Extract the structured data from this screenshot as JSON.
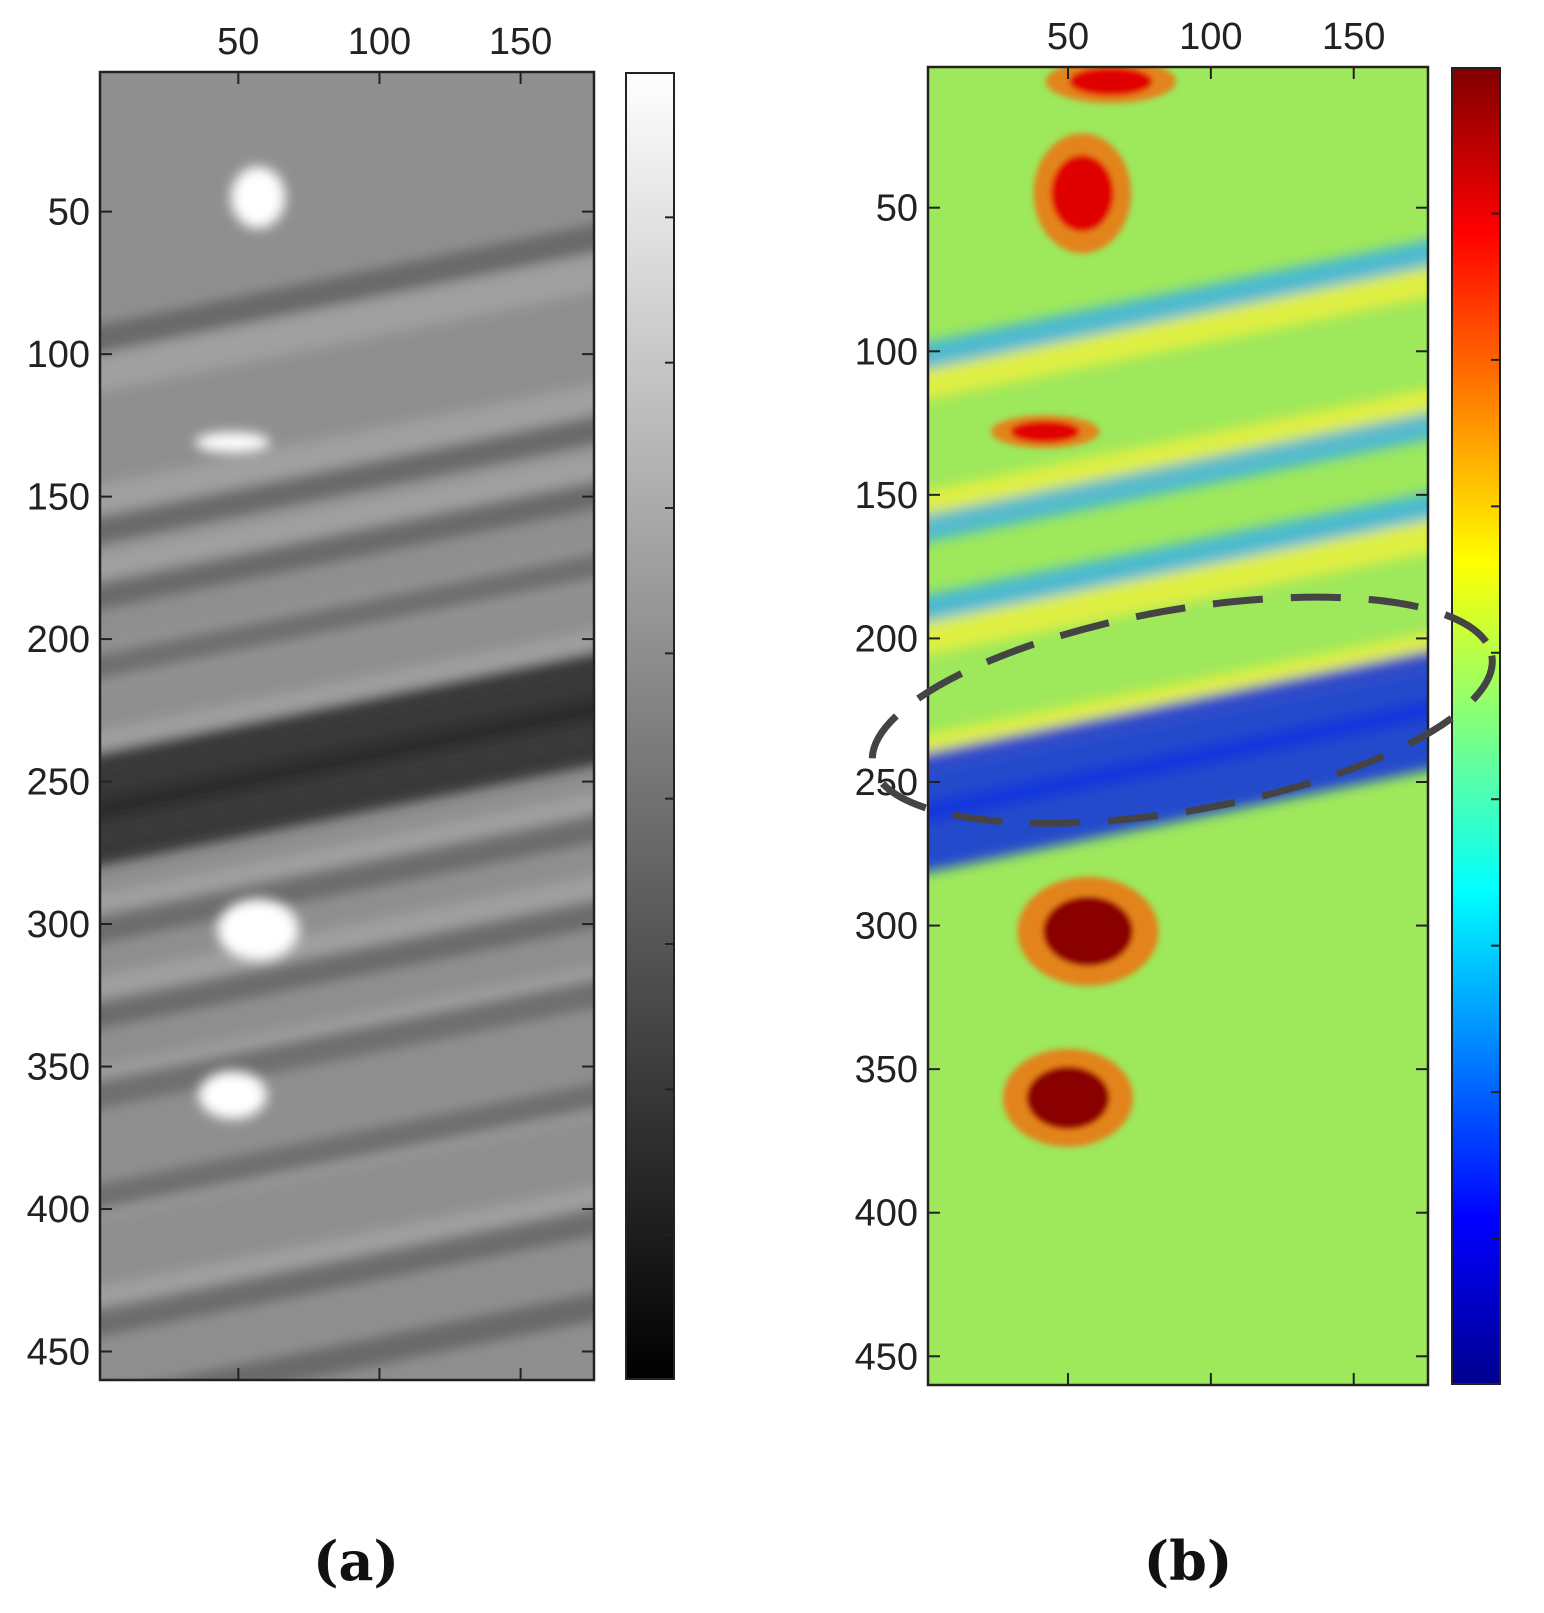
{
  "chart_data": [
    {
      "panel": "(a)",
      "type": "heatmap",
      "colormap": "gray",
      "x_ticks": [
        50,
        100,
        150
      ],
      "y_ticks": [
        50,
        100,
        150,
        200,
        250,
        300,
        350,
        400,
        450
      ],
      "xlim": [
        1,
        176
      ],
      "ylim": [
        1,
        460
      ],
      "x_axis_position": "top",
      "y_axis_direction": "reversed",
      "colorbar": "right",
      "features": {
        "dark_bands_y": [
          75,
          142,
          165,
          190,
          232,
          248,
          282,
          312,
          340,
          376,
          420,
          450
        ],
        "bright_spots": [
          {
            "x": 57,
            "y": 45,
            "w": 16,
            "h": 18
          },
          {
            "x": 48,
            "y": 131,
            "w": 22,
            "h": 6
          },
          {
            "x": 57,
            "y": 302,
            "w": 24,
            "h": 18
          },
          {
            "x": 48,
            "y": 360,
            "w": 20,
            "h": 14
          }
        ]
      }
    },
    {
      "panel": "(b)",
      "type": "heatmap",
      "colormap": "jet",
      "x_ticks": [
        50,
        100,
        150
      ],
      "y_ticks": [
        50,
        100,
        150,
        200,
        250,
        300,
        350,
        400,
        450
      ],
      "xlim": [
        1,
        176
      ],
      "ylim": [
        1,
        460
      ],
      "x_axis_position": "top",
      "y_axis_direction": "reversed",
      "colorbar": "right",
      "annotation": {
        "shape": "dashed-ellipse",
        "cx": 90,
        "cy": 225,
        "rx": 110,
        "ry": 35,
        "angle_deg": -10
      },
      "features": {
        "low_bands_y": [
          82,
          142,
          170,
          232,
          250
        ],
        "hot_spots": [
          {
            "x": 55,
            "y": 45,
            "w": 18,
            "h": 22,
            "level": "red"
          },
          {
            "x": 42,
            "y": 128,
            "w": 20,
            "h": 6,
            "level": "red"
          },
          {
            "x": 57,
            "y": 302,
            "w": 26,
            "h": 20,
            "level": "darkred"
          },
          {
            "x": 50,
            "y": 360,
            "w": 24,
            "h": 18,
            "level": "darkred"
          },
          {
            "x": 65,
            "y": 6,
            "w": 24,
            "h": 8,
            "level": "red"
          }
        ]
      }
    }
  ],
  "panel_labels": [
    "(a)",
    "(b)"
  ]
}
